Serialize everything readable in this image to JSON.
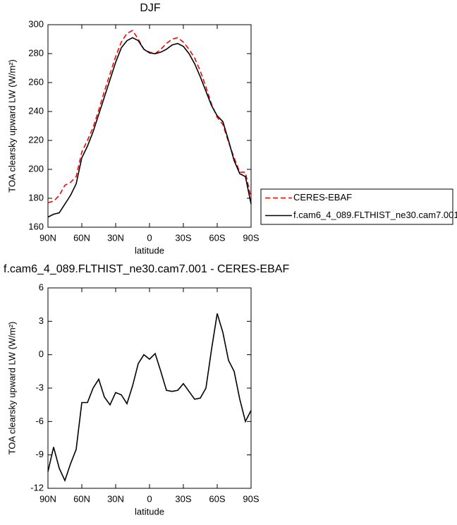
{
  "chart_data": [
    {
      "type": "line",
      "title": "DJF",
      "x_label": "latitude",
      "y_label": "TOA clearsky upward LW (W/m²)",
      "x": [
        90,
        85,
        80,
        75,
        70,
        65,
        60,
        55,
        50,
        45,
        40,
        35,
        30,
        25,
        20,
        15,
        10,
        5,
        0,
        -5,
        -10,
        -15,
        -20,
        -25,
        -30,
        -35,
        -40,
        -45,
        -50,
        -55,
        -60,
        -65,
        -70,
        -75,
        -80,
        -85,
        -90
      ],
      "series": [
        {
          "name": "CERES-EBAF",
          "color": "#ff0000",
          "style": "dashed",
          "values": [
            177,
            178,
            182,
            189,
            191,
            195,
            212,
            220,
            229,
            241,
            254,
            266,
            278,
            288,
            294,
            296,
            290,
            283,
            281,
            280,
            283,
            287,
            290,
            291,
            288,
            283,
            277,
            268,
            257,
            245,
            236,
            231,
            219,
            208,
            198,
            198,
            180
          ]
        },
        {
          "name": "f.cam6_4_089.FLTHIST_ne30.cam7.001",
          "color": "#000000",
          "style": "solid",
          "values": [
            167,
            169,
            170,
            176,
            182,
            190,
            208,
            216,
            226,
            238,
            250,
            262,
            274,
            284,
            289,
            291,
            289,
            283,
            280.5,
            280,
            281,
            283,
            286,
            287,
            285,
            280,
            273,
            264,
            254,
            244,
            237,
            233,
            220,
            206,
            197,
            195,
            176
          ]
        }
      ],
      "xlim": [
        90,
        -90
      ],
      "xticks": [
        {
          "value": 90,
          "label": "90N"
        },
        {
          "value": 60,
          "label": "60N"
        },
        {
          "value": 30,
          "label": "30N"
        },
        0,
        {
          "value": -30,
          "label": "30S"
        },
        {
          "value": -60,
          "label": "60S"
        },
        {
          "value": -90,
          "label": "90S"
        }
      ],
      "ylim": [
        160,
        300
      ],
      "yticks": [
        160,
        180,
        200,
        220,
        240,
        260,
        280,
        300
      ],
      "legend": "right"
    },
    {
      "type": "line",
      "title": "f.cam6_4_089.FLTHIST_ne30.cam7.001 - CERES-EBAF",
      "x_label": "latitude",
      "y_label": "TOA clearsky upward LW (W/m²)",
      "x": [
        90,
        85,
        80,
        75,
        70,
        65,
        60,
        55,
        50,
        45,
        40,
        35,
        30,
        25,
        20,
        15,
        10,
        5,
        0,
        -5,
        -10,
        -15,
        -20,
        -25,
        -30,
        -35,
        -40,
        -45,
        -50,
        -55,
        -60,
        -65,
        -70,
        -75,
        -80,
        -85,
        -90
      ],
      "values": [
        -10.5,
        -8.3,
        -10.2,
        -11.3,
        -9.8,
        -8.5,
        -4.3,
        -4.3,
        -3,
        -2.2,
        -3.8,
        -4.5,
        -3.4,
        -3.6,
        -4.4,
        -2.8,
        -0.8,
        0,
        -0.4,
        0.1,
        -1.5,
        -3.2,
        -3.3,
        -3.2,
        -2.6,
        -3.3,
        -4,
        -3.9,
        -3,
        0.5,
        3.7,
        2,
        -0.5,
        -1.5,
        -4,
        -6,
        -5
      ],
      "color": "#000000",
      "xlim": [
        90,
        -90
      ],
      "xticks": [
        {
          "value": 90,
          "label": "90N"
        },
        {
          "value": 60,
          "label": "60N"
        },
        {
          "value": 30,
          "label": "30N"
        },
        0,
        {
          "value": -30,
          "label": "30S"
        },
        {
          "value": -60,
          "label": "60S"
        },
        {
          "value": -90,
          "label": "90S"
        }
      ],
      "ylim": [
        -12,
        6
      ],
      "yticks": [
        -12,
        -9,
        -6,
        -3,
        0,
        3,
        6
      ]
    }
  ]
}
